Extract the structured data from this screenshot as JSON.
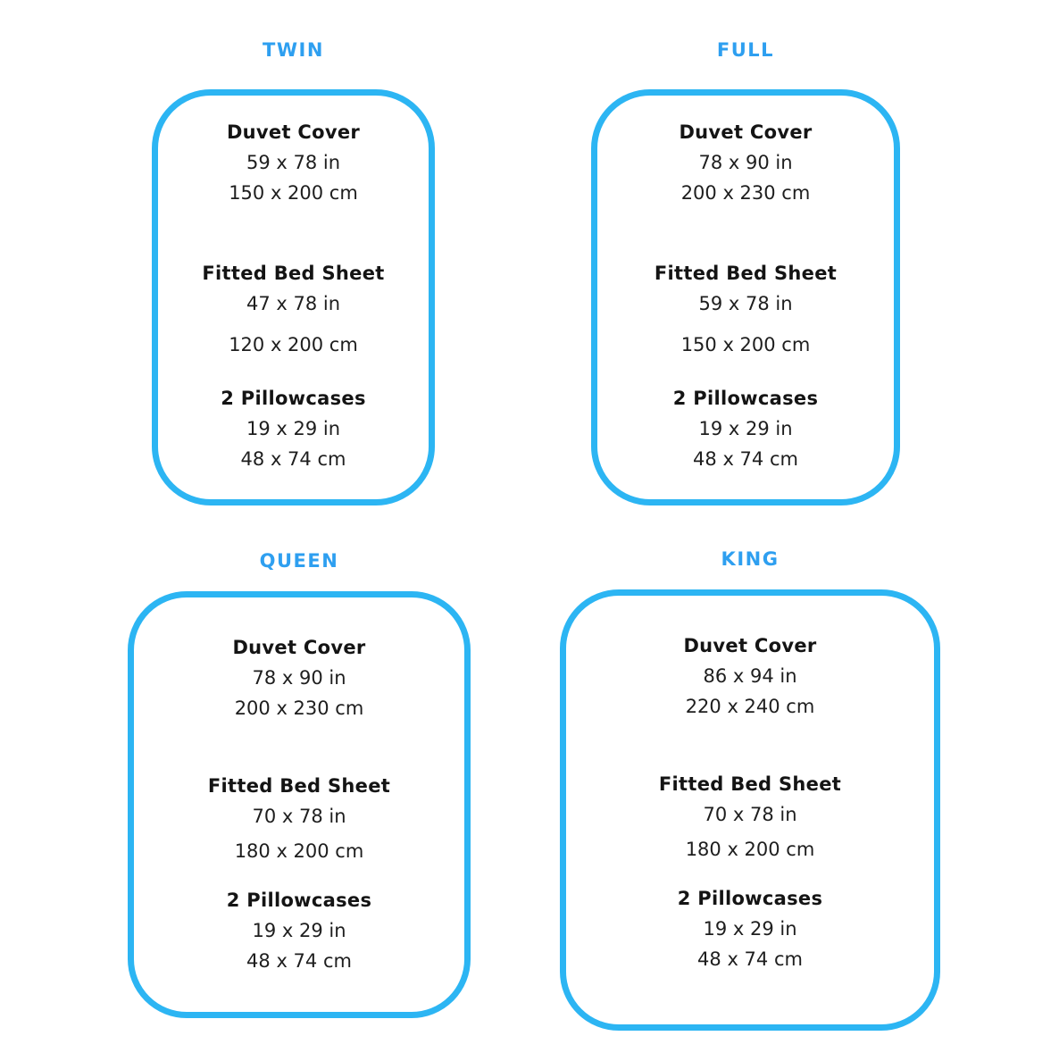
{
  "theme": {
    "border_color": "#2cb5f3",
    "title_color": "#2e9ff0",
    "text_color": "#1c1c1c"
  },
  "panels": [
    {
      "title": "TWIN",
      "items": [
        {
          "name": "Duvet Cover",
          "inches": "59 x 78 in",
          "cm": "150 x 200 cm"
        },
        {
          "name": "Fitted Bed Sheet",
          "inches": "47 x 78 in",
          "cm": "120 x 200 cm"
        },
        {
          "name": "2 Pillowcases",
          "inches": "19 x 29 in",
          "cm": "48 x 74 cm"
        }
      ]
    },
    {
      "title": "FULL",
      "items": [
        {
          "name": "Duvet Cover",
          "inches": "78 x 90 in",
          "cm": "200 x 230 cm"
        },
        {
          "name": "Fitted Bed Sheet",
          "inches": "59 x 78 in",
          "cm": "150 x 200 cm"
        },
        {
          "name": "2 Pillowcases",
          "inches": "19 x 29 in",
          "cm": "48 x 74 cm"
        }
      ]
    },
    {
      "title": "QUEEN",
      "items": [
        {
          "name": "Duvet Cover",
          "inches": "78 x 90 in",
          "cm": "200 x 230 cm"
        },
        {
          "name": "Fitted Bed Sheet",
          "inches": "70 x 78 in",
          "cm": "180 x 200 cm"
        },
        {
          "name": "2 Pillowcases",
          "inches": "19 x 29 in",
          "cm": "48 x 74 cm"
        }
      ]
    },
    {
      "title": "KING",
      "items": [
        {
          "name": "Duvet Cover",
          "inches": "86 x 94 in",
          "cm": "220 x 240 cm"
        },
        {
          "name": "Fitted Bed Sheet",
          "inches": "70 x 78 in",
          "cm": "180 x 200 cm"
        },
        {
          "name": "2 Pillowcases",
          "inches": "19 x 29 in",
          "cm": "48 x 74 cm"
        }
      ]
    }
  ]
}
